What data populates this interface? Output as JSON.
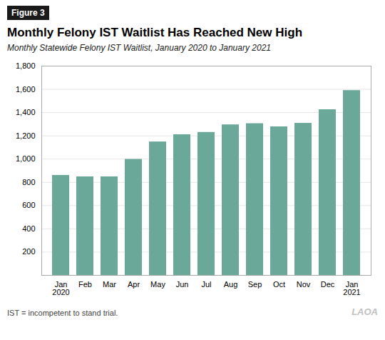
{
  "chart_data": {
    "type": "bar",
    "figure_label": "Figure 3",
    "title": "Monthly Felony IST Waitlist Has Reached New High",
    "subtitle": "Monthly Statewide Felony IST Waitlist, January 2020 to January 2021",
    "footnote": "IST = incompetent to stand trial.",
    "watermark": "LAOA",
    "categories": [
      "Jan\n2020",
      "Feb",
      "Mar",
      "Apr",
      "May",
      "Jun",
      "Jul",
      "Aug",
      "Sep",
      "Oct",
      "Nov",
      "Dec",
      "Jan\n2021"
    ],
    "values": [
      860,
      848,
      848,
      998,
      1148,
      1210,
      1230,
      1295,
      1305,
      1278,
      1308,
      1425,
      1590
    ],
    "color": "#6aA89A",
    "ylim": [
      0,
      1800
    ],
    "yticks": [
      200,
      400,
      600,
      800,
      {
        "value": 1000,
        "label": "1,000"
      },
      {
        "value": 1200,
        "label": "1,200"
      },
      {
        "value": 1400,
        "label": "1,400"
      },
      {
        "value": 1600,
        "label": "1,600"
      },
      {
        "value": 1800,
        "label": "1,800"
      }
    ],
    "grid": true
  }
}
